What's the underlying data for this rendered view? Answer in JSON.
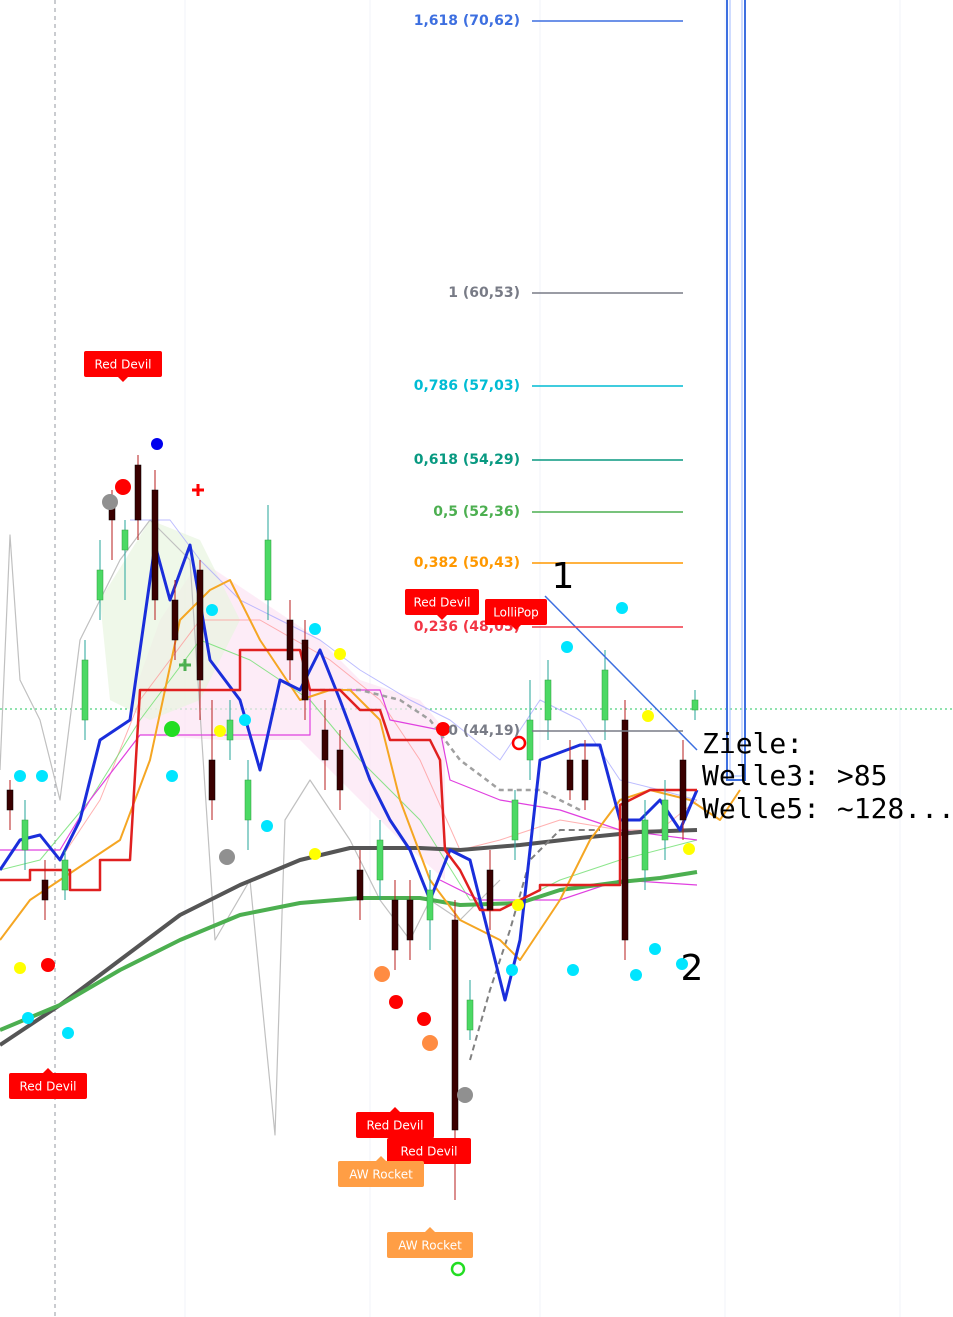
{
  "fib_levels": [
    {
      "label": "1,618 (70,62)",
      "color": "#3d6fe0"
    },
    {
      "label": "1 (60,53)",
      "color": "#787b86"
    },
    {
      "label": "0,786 (57,03)",
      "color": "#00bcd4"
    },
    {
      "label": "0,618 (54,29)",
      "color": "#089981"
    },
    {
      "label": "0,5 (52,36)",
      "color": "#4caf50"
    },
    {
      "label": "0,382 (50,43)",
      "color": "#ff9800"
    },
    {
      "label": "0,236 (48,05)",
      "color": "#f23645"
    },
    {
      "label": "0 (44,19)",
      "color": "#787b86"
    }
  ],
  "signals": [
    {
      "label": "Red Devil",
      "color": "#ff0000"
    },
    {
      "label": "Red Devil",
      "color": "#ff0000"
    },
    {
      "label": "LolliPop",
      "color": "#ff0000"
    },
    {
      "label": "Red Devil",
      "color": "#ff0000"
    },
    {
      "label": "Red Devil",
      "color": "#ff0000"
    },
    {
      "label": "Red Devil",
      "color": "#ff0000"
    },
    {
      "label": "AW Rocket",
      "color": "#ff9e45"
    },
    {
      "label": "AW Rocket",
      "color": "#ff9e45"
    }
  ],
  "wave_labels": [
    "1",
    "2"
  ],
  "note": [
    "Ziele:",
    "Welle3: >85",
    "Welle5: ~128..."
  ]
}
